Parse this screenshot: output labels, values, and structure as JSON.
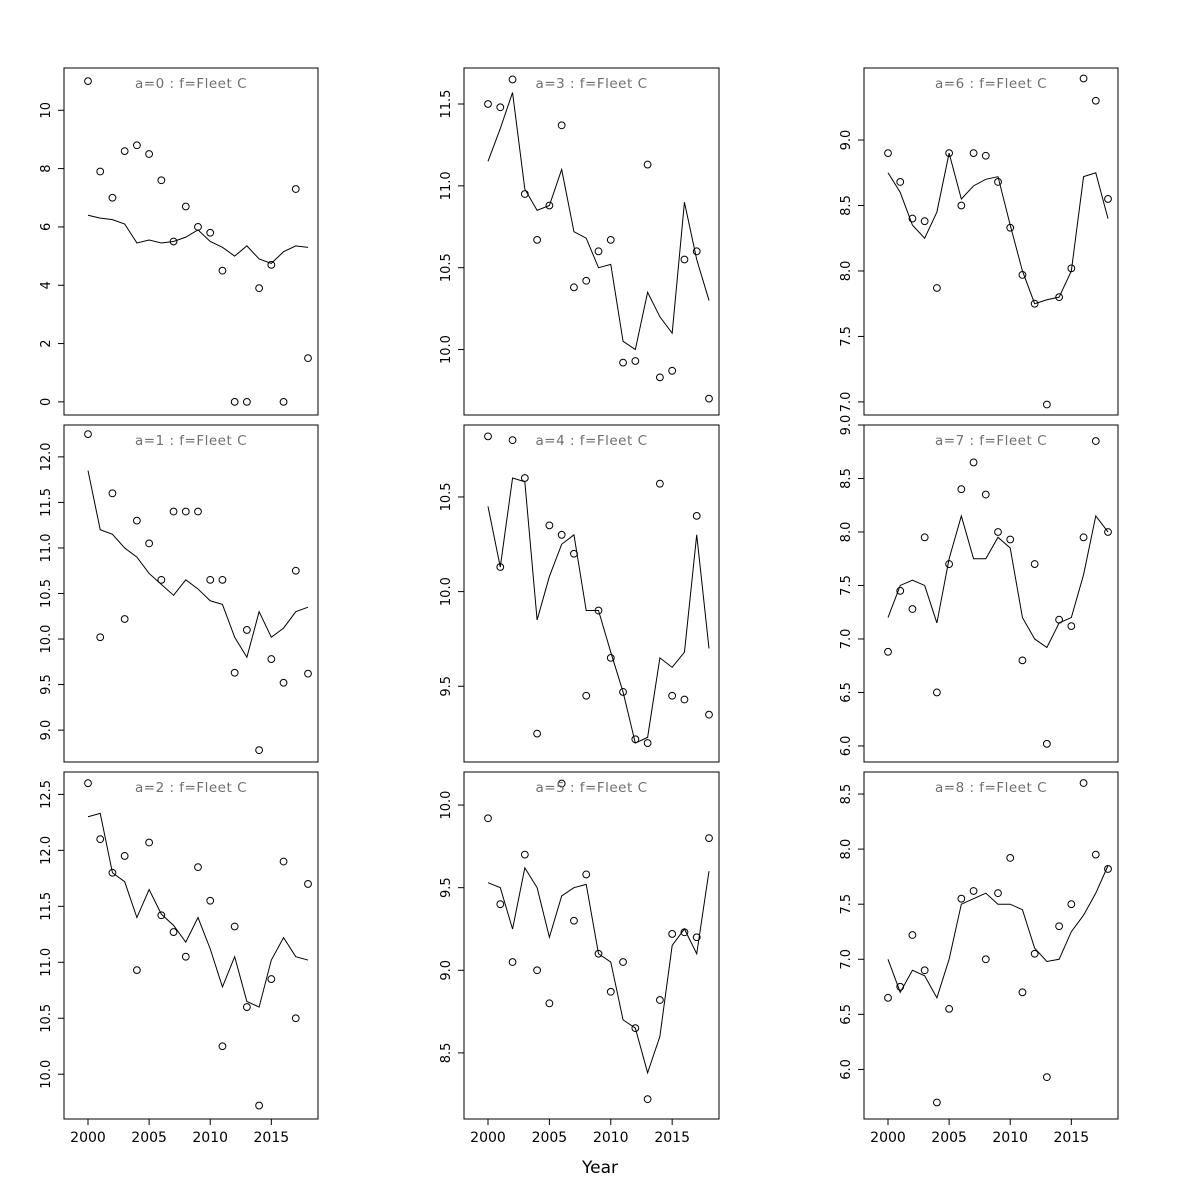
{
  "figure": {
    "xlabel": "Year",
    "title_color": "#6f6f6f",
    "line_color": "#000000",
    "point_color": "#000000"
  },
  "chart_data": {
    "type": "scatter",
    "layout": "3x3 panel grid, open-circle observations with fitted line per panel",
    "x": [
      2000,
      2001,
      2002,
      2003,
      2004,
      2005,
      2006,
      2007,
      2008,
      2009,
      2010,
      2011,
      2012,
      2013,
      2014,
      2015,
      2016,
      2017,
      2018
    ],
    "x_ticks": [
      2000,
      2005,
      2010,
      2015
    ],
    "x_tick_labels": [
      "2000",
      "2005",
      "2010",
      "2015"
    ],
    "xlabel": "Year",
    "panels": [
      {
        "title": "a=0  :  f=Fleet C",
        "ylim": [
          -0.45,
          11.45
        ],
        "yticks": [
          0,
          2,
          4,
          6,
          8,
          10
        ],
        "ytick_labels": [
          "0",
          "2",
          "4",
          "6",
          "8",
          "10"
        ],
        "points": [
          11.0,
          7.9,
          7.0,
          8.6,
          8.8,
          8.5,
          7.6,
          5.5,
          6.7,
          6.0,
          5.8,
          4.5,
          0.0,
          0.0,
          3.9,
          4.7,
          0.0,
          7.3,
          1.5
        ],
        "line": [
          6.4,
          6.3,
          6.25,
          6.1,
          5.45,
          5.55,
          5.45,
          5.5,
          5.65,
          5.9,
          5.5,
          5.3,
          5.0,
          5.35,
          4.9,
          4.75,
          5.15,
          5.35,
          5.3
        ]
      },
      {
        "title": "a=1  :  f=Fleet C",
        "ylim": [
          8.65,
          12.35
        ],
        "yticks": [
          9.0,
          9.5,
          10.0,
          10.5,
          11.0,
          11.5,
          12.0
        ],
        "ytick_labels": [
          "9.0",
          "9.5",
          "10.0",
          "10.5",
          "11.0",
          "11.5",
          "12.0"
        ],
        "points": [
          12.25,
          10.02,
          11.6,
          10.22,
          11.3,
          11.05,
          10.65,
          11.4,
          11.4,
          11.4,
          10.65,
          10.65,
          9.63,
          10.1,
          8.78,
          9.78,
          9.52,
          10.75,
          9.62
        ],
        "line": [
          11.85,
          11.2,
          11.15,
          11.0,
          10.9,
          10.72,
          10.6,
          10.48,
          10.65,
          10.55,
          10.42,
          10.38,
          10.02,
          9.8,
          10.3,
          10.02,
          10.12,
          10.3,
          10.35
        ]
      },
      {
        "title": "a=2  :  f=Fleet C",
        "ylim": [
          9.6,
          12.7
        ],
        "yticks": [
          10.0,
          10.5,
          11.0,
          11.5,
          12.0,
          12.5
        ],
        "ytick_labels": [
          "10.0",
          "10.5",
          "11.0",
          "11.5",
          "12.0",
          "12.5"
        ],
        "points": [
          12.6,
          12.1,
          11.8,
          11.95,
          10.93,
          12.07,
          11.42,
          11.27,
          11.05,
          11.85,
          11.55,
          10.25,
          11.32,
          10.6,
          9.72,
          10.85,
          11.9,
          10.5,
          11.7
        ],
        "line": [
          12.3,
          12.33,
          11.8,
          11.72,
          11.4,
          11.65,
          11.43,
          11.33,
          11.18,
          11.4,
          11.12,
          10.78,
          11.05,
          10.65,
          10.6,
          11.02,
          11.22,
          11.05,
          11.02
        ]
      },
      {
        "title": "a=3  :  f=Fleet C",
        "ylim": [
          9.6,
          11.72
        ],
        "yticks": [
          10.0,
          10.5,
          11.0,
          11.5
        ],
        "ytick_labels": [
          "10.0",
          "10.5",
          "11.0",
          "11.5"
        ],
        "points": [
          11.5,
          11.48,
          11.65,
          10.95,
          10.67,
          10.88,
          11.37,
          10.38,
          10.42,
          10.6,
          10.67,
          9.92,
          9.93,
          11.13,
          9.83,
          9.87,
          10.55,
          10.6,
          9.7
        ],
        "line": [
          11.15,
          11.35,
          11.57,
          10.98,
          10.85,
          10.88,
          11.1,
          10.72,
          10.68,
          10.5,
          10.52,
          10.05,
          10.0,
          10.35,
          10.2,
          10.1,
          10.9,
          10.55,
          10.3
        ]
      },
      {
        "title": "a=4  :  f=Fleet C",
        "ylim": [
          9.1,
          10.88
        ],
        "yticks": [
          9.5,
          10.0,
          10.5
        ],
        "ytick_labels": [
          "9.5",
          "10.0",
          "10.5"
        ],
        "points": [
          10.82,
          10.13,
          10.8,
          10.6,
          9.25,
          10.35,
          10.3,
          10.2,
          9.45,
          9.9,
          9.65,
          9.47,
          9.22,
          9.2,
          10.57,
          9.45,
          9.43,
          10.4,
          9.35
        ],
        "line": [
          10.45,
          10.13,
          10.6,
          10.58,
          9.85,
          10.08,
          10.25,
          10.3,
          9.9,
          9.9,
          9.68,
          9.47,
          9.2,
          9.23,
          9.65,
          9.6,
          9.68,
          10.3,
          9.7
        ]
      },
      {
        "title": "a=5  :  f=Fleet C",
        "ylim": [
          8.1,
          10.2
        ],
        "yticks": [
          8.5,
          9.0,
          9.5,
          10.0
        ],
        "ytick_labels": [
          "8.5",
          "9.0",
          "9.5",
          "10.0"
        ],
        "points": [
          9.92,
          9.4,
          9.05,
          9.7,
          9.0,
          8.8,
          10.13,
          9.3,
          9.58,
          9.1,
          8.87,
          9.05,
          8.65,
          8.22,
          8.82,
          9.22,
          9.23,
          9.2,
          9.8
        ],
        "line": [
          9.53,
          9.5,
          9.25,
          9.62,
          9.5,
          9.2,
          9.45,
          9.5,
          9.52,
          9.1,
          9.05,
          8.7,
          8.65,
          8.38,
          8.6,
          9.15,
          9.25,
          9.1,
          9.6
        ]
      },
      {
        "title": "a=6  :  f=Fleet C",
        "ylim": [
          6.9,
          9.55
        ],
        "yticks": [
          7.0,
          7.5,
          8.0,
          8.5,
          9.0
        ],
        "ytick_labels": [
          "7.0",
          "7.5",
          "8.0",
          "8.5",
          "9.0"
        ],
        "points": [
          8.9,
          8.68,
          8.4,
          8.38,
          7.87,
          8.9,
          8.5,
          8.9,
          8.88,
          8.68,
          8.33,
          7.97,
          7.75,
          6.98,
          7.8,
          8.02,
          9.47,
          9.3,
          8.55
        ],
        "line": [
          8.75,
          8.6,
          8.35,
          8.25,
          8.45,
          8.9,
          8.55,
          8.65,
          8.7,
          8.72,
          8.35,
          8.0,
          7.75,
          7.78,
          7.8,
          8.0,
          8.72,
          8.75,
          8.4
        ]
      },
      {
        "title": "a=7  :  f=Fleet C",
        "ylim": [
          5.85,
          9.0
        ],
        "yticks": [
          6.0,
          6.5,
          7.0,
          7.5,
          8.0,
          8.5,
          9.0
        ],
        "ytick_labels": [
          "6.0",
          "6.5",
          "7.0",
          "7.5",
          "8.0",
          "8.5",
          "9.0"
        ],
        "points": [
          6.88,
          7.45,
          7.28,
          7.95,
          6.5,
          7.7,
          8.4,
          8.65,
          8.35,
          8.0,
          7.93,
          6.8,
          7.7,
          6.02,
          7.18,
          7.12,
          7.95,
          8.85,
          8.0
        ],
        "line": [
          7.2,
          7.5,
          7.55,
          7.5,
          7.15,
          7.75,
          8.15,
          7.75,
          7.75,
          7.95,
          7.85,
          7.2,
          7.0,
          6.92,
          7.15,
          7.2,
          7.6,
          8.15,
          8.0
        ]
      },
      {
        "title": "a=8  :  f=Fleet C",
        "ylim": [
          5.55,
          8.7
        ],
        "yticks": [
          6.0,
          6.5,
          7.0,
          7.5,
          8.0,
          8.5
        ],
        "ytick_labels": [
          "6.0",
          "6.5",
          "7.0",
          "7.5",
          "8.0",
          "8.5"
        ],
        "points": [
          6.65,
          6.75,
          7.22,
          6.9,
          5.7,
          6.55,
          7.55,
          7.62,
          7.0,
          7.6,
          7.92,
          6.7,
          7.05,
          5.93,
          7.3,
          7.5,
          8.6,
          7.95,
          7.82
        ],
        "line": [
          7.0,
          6.7,
          6.9,
          6.85,
          6.65,
          7.0,
          7.5,
          7.55,
          7.6,
          7.5,
          7.5,
          7.45,
          7.1,
          6.98,
          7.0,
          7.25,
          7.4,
          7.6,
          7.85
        ]
      }
    ]
  }
}
